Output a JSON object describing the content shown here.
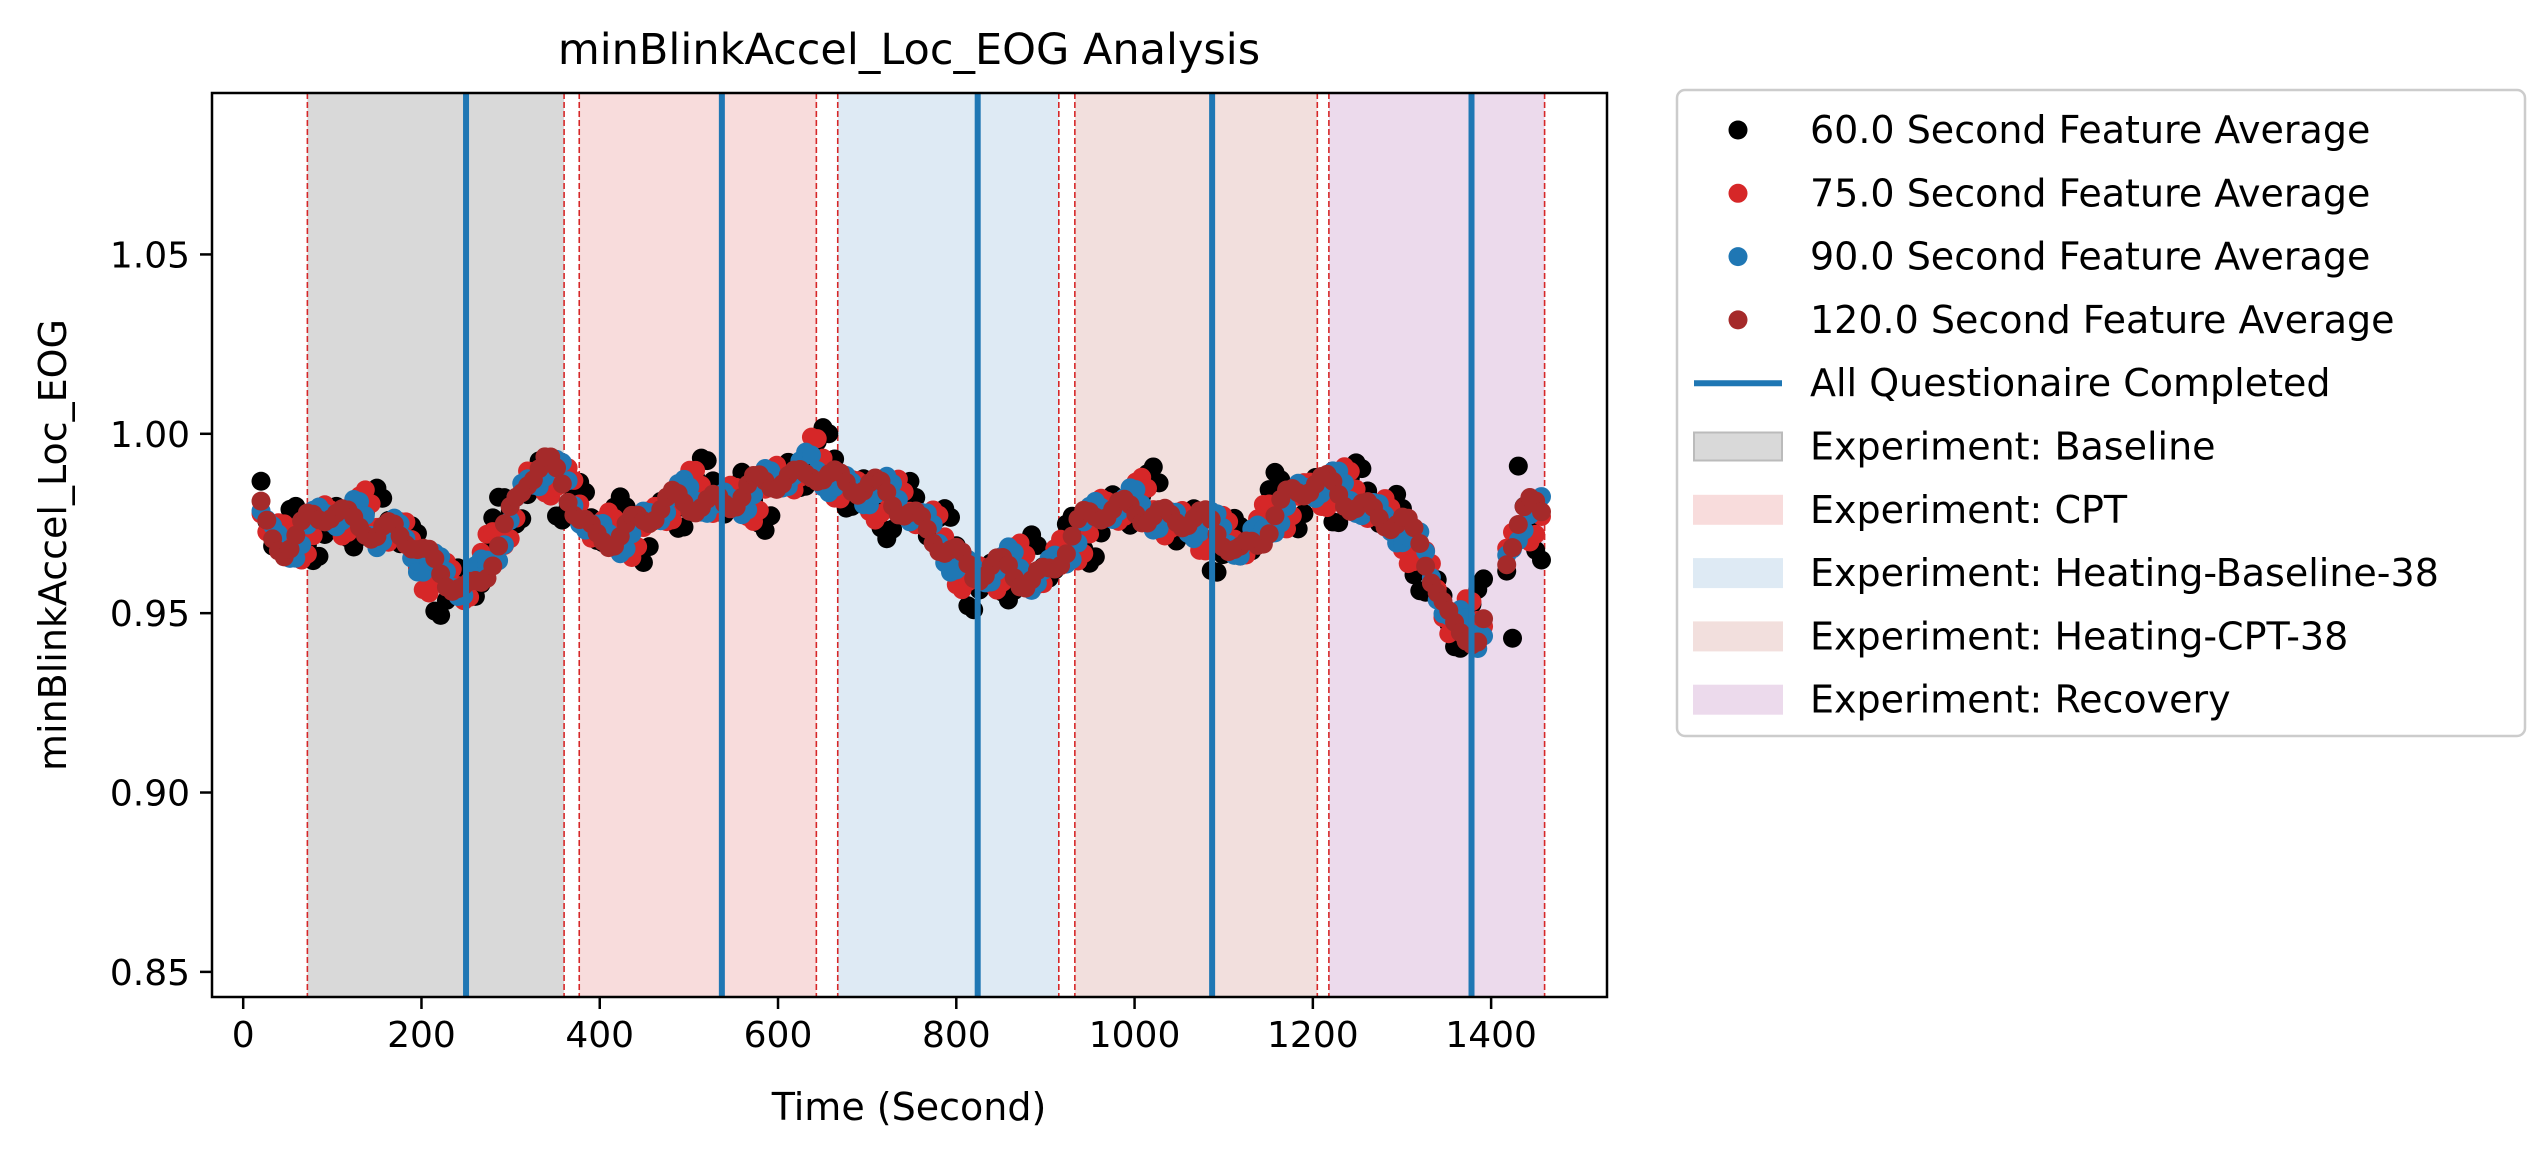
{
  "chart_data": {
    "type": "scatter",
    "title": "minBlinkAccel_Loc_EOG Analysis",
    "xlabel": "Time (Second)",
    "ylabel": "minBlinkAccel_Loc_EOG",
    "xlim": [
      -35,
      1530
    ],
    "ylim": [
      0.843,
      1.095
    ],
    "xticks": [
      0,
      200,
      400,
      600,
      800,
      1000,
      1200,
      1400
    ],
    "yticks": [
      0.85,
      0.9,
      0.95,
      1.0,
      1.05
    ],
    "ytick_labels": [
      "0.85",
      "0.90",
      "0.95",
      "1.00",
      "1.05"
    ],
    "grid": false,
    "legend_position": "outside-right",
    "phases": [
      {
        "name": "Experiment: Baseline",
        "start": 72,
        "end": 360,
        "color": "#d9d9d9"
      },
      {
        "name": "Experiment: CPT",
        "start": 377,
        "end": 643,
        "color": "#f8dcdc"
      },
      {
        "name": "Experiment: Heating-Baseline-38",
        "start": 667,
        "end": 915,
        "color": "#deeaf4"
      },
      {
        "name": "Experiment: Heating-CPT-38",
        "start": 933,
        "end": 1205,
        "color": "#f2dfdd"
      },
      {
        "name": "Experiment: Recovery",
        "start": 1218,
        "end": 1460,
        "color": "#ecdaec"
      }
    ],
    "questionnaire_name": "All Questionaire Completed",
    "questionnaire_color": "#1f77b4",
    "questionnaire_times": [
      250,
      537,
      824,
      1087,
      1378
    ],
    "boundary_color": "#d62728",
    "series": [
      {
        "name": "60.0 Second Feature Average",
        "color": "#000000"
      },
      {
        "name": "75.0 Second Feature Average",
        "color": "#d62728"
      },
      {
        "name": "90.0 Second Feature Average",
        "color": "#1f77b4"
      },
      {
        "name": "120.0 Second Feature Average",
        "color": "#a52a2a"
      }
    ],
    "trend": [
      [
        20,
        0.98
      ],
      [
        30,
        0.972
      ],
      [
        45,
        0.97
      ],
      [
        60,
        0.972
      ],
      [
        75,
        0.975
      ],
      [
        95,
        0.977
      ],
      [
        115,
        0.975
      ],
      [
        135,
        0.976
      ],
      [
        150,
        0.973
      ],
      [
        170,
        0.975
      ],
      [
        185,
        0.972
      ],
      [
        200,
        0.965
      ],
      [
        215,
        0.962
      ],
      [
        230,
        0.958
      ],
      [
        250,
        0.955
      ],
      [
        265,
        0.96
      ],
      [
        285,
        0.97
      ],
      [
        300,
        0.978
      ],
      [
        320,
        0.988
      ],
      [
        340,
        0.99
      ],
      [
        360,
        0.985
      ],
      [
        375,
        0.978
      ],
      [
        395,
        0.972
      ],
      [
        420,
        0.973
      ],
      [
        450,
        0.975
      ],
      [
        480,
        0.98
      ],
      [
        510,
        0.982
      ],
      [
        540,
        0.982
      ],
      [
        570,
        0.984
      ],
      [
        600,
        0.986
      ],
      [
        620,
        0.987
      ],
      [
        640,
        0.992
      ],
      [
        660,
        0.989
      ],
      [
        680,
        0.986
      ],
      [
        700,
        0.984
      ],
      [
        720,
        0.982
      ],
      [
        740,
        0.979
      ],
      [
        760,
        0.976
      ],
      [
        780,
        0.972
      ],
      [
        800,
        0.966
      ],
      [
        820,
        0.96
      ],
      [
        840,
        0.961
      ],
      [
        860,
        0.962
      ],
      [
        880,
        0.96
      ],
      [
        900,
        0.962
      ],
      [
        920,
        0.968
      ],
      [
        940,
        0.974
      ],
      [
        960,
        0.977
      ],
      [
        980,
        0.978
      ],
      [
        1000,
        0.98
      ],
      [
        1020,
        0.979
      ],
      [
        1040,
        0.977
      ],
      [
        1060,
        0.976
      ],
      [
        1080,
        0.974
      ],
      [
        1100,
        0.97
      ],
      [
        1120,
        0.967
      ],
      [
        1140,
        0.972
      ],
      [
        1160,
        0.98
      ],
      [
        1180,
        0.983
      ],
      [
        1200,
        0.985
      ],
      [
        1220,
        0.984
      ],
      [
        1240,
        0.982
      ],
      [
        1260,
        0.98
      ],
      [
        1280,
        0.978
      ],
      [
        1300,
        0.975
      ],
      [
        1320,
        0.968
      ],
      [
        1340,
        0.955
      ],
      [
        1350,
        0.948
      ],
      [
        1360,
        0.945
      ],
      [
        1375,
        0.946
      ],
      [
        1385,
        0.945
      ],
      [
        1410,
        0.96
      ],
      [
        1420,
        0.968
      ],
      [
        1430,
        0.975
      ],
      [
        1440,
        0.978
      ],
      [
        1460,
        0.976
      ]
    ]
  }
}
